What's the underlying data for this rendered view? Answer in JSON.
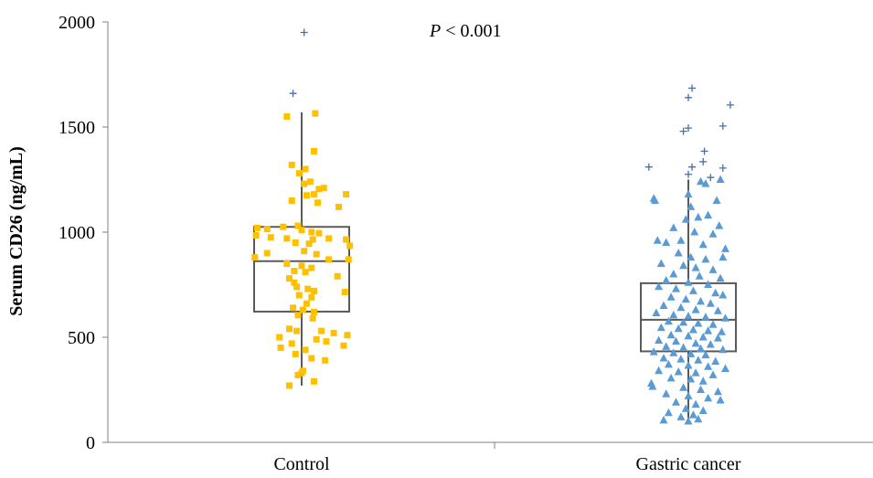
{
  "chart_data": {
    "type": "boxplot",
    "ylabel": "Serum CD26 (ng/mL)",
    "ylim": [
      0,
      2000
    ],
    "yticks": [
      "0",
      "500",
      "1000",
      "1500",
      "2000"
    ],
    "categories": [
      "Control",
      "Gastric cancer"
    ],
    "annotation": {
      "italic": "P",
      "rest": " < 0.001"
    },
    "grid": false,
    "series": [
      {
        "category": "Control",
        "marker": "square",
        "color": "#FFC000",
        "box": {
          "whisker_low": 270,
          "q1": 622,
          "median": 862,
          "q3": 1025,
          "whisker_high": 1570
        },
        "outliers": [
          1660,
          1950
        ],
        "points": [
          {
            "x": -0.12,
            "y": 1550
          },
          {
            "x": -0.08,
            "y": 1320
          },
          {
            "x": 0.03,
            "y": 1300
          },
          {
            "x": -0.02,
            "y": 1280
          },
          {
            "x": 0.1,
            "y": 1385
          },
          {
            "x": 0.11,
            "y": 1565
          },
          {
            "x": 0.07,
            "y": 1240
          },
          {
            "x": 0.02,
            "y": 1230
          },
          {
            "x": 0.14,
            "y": 1205
          },
          {
            "x": 0.18,
            "y": 1210
          },
          {
            "x": 0.1,
            "y": 1180
          },
          {
            "x": 0.36,
            "y": 1180
          },
          {
            "x": -0.08,
            "y": 1150
          },
          {
            "x": 0.04,
            "y": 1175
          },
          {
            "x": 0.13,
            "y": 1140
          },
          {
            "x": 0.3,
            "y": 1120
          },
          {
            "x": -0.36,
            "y": 1020
          },
          {
            "x": -0.28,
            "y": 1015
          },
          {
            "x": -0.15,
            "y": 1025
          },
          {
            "x": -0.03,
            "y": 1030
          },
          {
            "x": 0.0,
            "y": 1010
          },
          {
            "x": 0.08,
            "y": 1000
          },
          {
            "x": 0.14,
            "y": 995
          },
          {
            "x": -0.37,
            "y": 985
          },
          {
            "x": -0.25,
            "y": 975
          },
          {
            "x": -0.12,
            "y": 970
          },
          {
            "x": 0.09,
            "y": 965
          },
          {
            "x": 0.22,
            "y": 970
          },
          {
            "x": 0.36,
            "y": 965
          },
          {
            "x": -0.05,
            "y": 950
          },
          {
            "x": 0.06,
            "y": 945
          },
          {
            "x": 0.39,
            "y": 935
          },
          {
            "x": -0.28,
            "y": 900
          },
          {
            "x": 0.02,
            "y": 910
          },
          {
            "x": 0.12,
            "y": 895
          },
          {
            "x": -0.38,
            "y": 880
          },
          {
            "x": 0.22,
            "y": 870
          },
          {
            "x": 0.38,
            "y": 870
          },
          {
            "x": -0.12,
            "y": 850
          },
          {
            "x": 0.0,
            "y": 840
          },
          {
            "x": 0.08,
            "y": 830
          },
          {
            "x": -0.06,
            "y": 815
          },
          {
            "x": 0.03,
            "y": 810
          },
          {
            "x": 0.29,
            "y": 790
          },
          {
            "x": -0.1,
            "y": 780
          },
          {
            "x": -0.06,
            "y": 760
          },
          {
            "x": -0.04,
            "y": 740
          },
          {
            "x": 0.05,
            "y": 730
          },
          {
            "x": 0.1,
            "y": 720
          },
          {
            "x": 0.35,
            "y": 715
          },
          {
            "x": -0.02,
            "y": 700
          },
          {
            "x": 0.08,
            "y": 690
          },
          {
            "x": 0.04,
            "y": 660
          },
          {
            "x": -0.07,
            "y": 640
          },
          {
            "x": 0.01,
            "y": 630
          },
          {
            "x": 0.1,
            "y": 620
          },
          {
            "x": -0.03,
            "y": 605
          },
          {
            "x": 0.09,
            "y": 590
          },
          {
            "x": -0.1,
            "y": 540
          },
          {
            "x": -0.04,
            "y": 530
          },
          {
            "x": 0.16,
            "y": 530
          },
          {
            "x": 0.26,
            "y": 520
          },
          {
            "x": 0.37,
            "y": 510
          },
          {
            "x": -0.18,
            "y": 500
          },
          {
            "x": 0.12,
            "y": 490
          },
          {
            "x": 0.2,
            "y": 480
          },
          {
            "x": -0.08,
            "y": 470
          },
          {
            "x": 0.34,
            "y": 460
          },
          {
            "x": -0.17,
            "y": 450
          },
          {
            "x": 0.03,
            "y": 440
          },
          {
            "x": -0.05,
            "y": 420
          },
          {
            "x": 0.08,
            "y": 400
          },
          {
            "x": 0.19,
            "y": 390
          },
          {
            "x": 0.01,
            "y": 340
          },
          {
            "x": -0.03,
            "y": 320
          },
          {
            "x": 0.0,
            "y": 330
          },
          {
            "x": 0.1,
            "y": 290
          },
          {
            "x": -0.1,
            "y": 270
          }
        ]
      },
      {
        "category": "Gastric cancer",
        "marker": "triangle",
        "color": "#5B9BD5",
        "box": {
          "whisker_low": 105,
          "q1": 433,
          "median": 583,
          "q3": 757,
          "whisker_high": 1250
        },
        "outliers": [
          1685,
          1640,
          1605,
          1505,
          1495,
          1480,
          1385,
          1335,
          1310,
          1310,
          1305,
          1275,
          1260
        ],
        "points": [
          {
            "x": -0.28,
            "y": 1160
          },
          {
            "x": -0.27,
            "y": 1150
          },
          {
            "x": 0.1,
            "y": 1240
          },
          {
            "x": 0.14,
            "y": 1230
          },
          {
            "x": 0.23,
            "y": 1150
          },
          {
            "x": 0.26,
            "y": 1250
          },
          {
            "x": 0.0,
            "y": 1180
          },
          {
            "x": 0.02,
            "y": 1120
          },
          {
            "x": -0.02,
            "y": 1060
          },
          {
            "x": 0.08,
            "y": 1070
          },
          {
            "x": 0.16,
            "y": 1080
          },
          {
            "x": 0.25,
            "y": 1030
          },
          {
            "x": -0.12,
            "y": 1020
          },
          {
            "x": 0.05,
            "y": 1000
          },
          {
            "x": 0.2,
            "y": 990
          },
          {
            "x": -0.25,
            "y": 960
          },
          {
            "x": -0.18,
            "y": 950
          },
          {
            "x": -0.06,
            "y": 960
          },
          {
            "x": 0.12,
            "y": 940
          },
          {
            "x": 0.3,
            "y": 920
          },
          {
            "x": -0.08,
            "y": 900
          },
          {
            "x": 0.02,
            "y": 880
          },
          {
            "x": 0.14,
            "y": 870
          },
          {
            "x": 0.28,
            "y": 880
          },
          {
            "x": -0.22,
            "y": 850
          },
          {
            "x": -0.04,
            "y": 840
          },
          {
            "x": 0.06,
            "y": 830
          },
          {
            "x": 0.2,
            "y": 820
          },
          {
            "x": -0.12,
            "y": 800
          },
          {
            "x": 0.09,
            "y": 790
          },
          {
            "x": 0.26,
            "y": 780
          },
          {
            "x": -0.18,
            "y": 770
          },
          {
            "x": 0.0,
            "y": 760
          },
          {
            "x": 0.16,
            "y": 750
          },
          {
            "x": -0.24,
            "y": 740
          },
          {
            "x": -0.1,
            "y": 730
          },
          {
            "x": 0.04,
            "y": 720
          },
          {
            "x": 0.22,
            "y": 710
          },
          {
            "x": 0.28,
            "y": 700
          },
          {
            "x": -0.14,
            "y": 690
          },
          {
            "x": -0.02,
            "y": 680
          },
          {
            "x": 0.1,
            "y": 670
          },
          {
            "x": 0.18,
            "y": 660
          },
          {
            "x": -0.2,
            "y": 650
          },
          {
            "x": -0.06,
            "y": 640
          },
          {
            "x": 0.06,
            "y": 630
          },
          {
            "x": 0.24,
            "y": 625
          },
          {
            "x": -0.26,
            "y": 615
          },
          {
            "x": -0.12,
            "y": 605
          },
          {
            "x": 0.0,
            "y": 600
          },
          {
            "x": 0.14,
            "y": 595
          },
          {
            "x": 0.3,
            "y": 590
          },
          {
            "x": -0.16,
            "y": 575
          },
          {
            "x": -0.04,
            "y": 570
          },
          {
            "x": 0.08,
            "y": 565
          },
          {
            "x": 0.2,
            "y": 560
          },
          {
            "x": -0.22,
            "y": 545
          },
          {
            "x": -0.08,
            "y": 540
          },
          {
            "x": 0.04,
            "y": 535
          },
          {
            "x": 0.16,
            "y": 530
          },
          {
            "x": 0.27,
            "y": 525
          },
          {
            "x": -0.14,
            "y": 510
          },
          {
            "x": 0.0,
            "y": 505
          },
          {
            "x": 0.12,
            "y": 500
          },
          {
            "x": 0.24,
            "y": 495
          },
          {
            "x": -0.24,
            "y": 485
          },
          {
            "x": -0.1,
            "y": 480
          },
          {
            "x": 0.06,
            "y": 470
          },
          {
            "x": 0.18,
            "y": 465
          },
          {
            "x": -0.18,
            "y": 455
          },
          {
            "x": -0.04,
            "y": 450
          },
          {
            "x": 0.1,
            "y": 445
          },
          {
            "x": 0.28,
            "y": 440
          },
          {
            "x": -0.28,
            "y": 430
          },
          {
            "x": -0.12,
            "y": 425
          },
          {
            "x": 0.02,
            "y": 420
          },
          {
            "x": 0.14,
            "y": 415
          },
          {
            "x": -0.2,
            "y": 400
          },
          {
            "x": -0.06,
            "y": 395
          },
          {
            "x": 0.08,
            "y": 390
          },
          {
            "x": 0.22,
            "y": 385
          },
          {
            "x": -0.16,
            "y": 370
          },
          {
            "x": 0.0,
            "y": 365
          },
          {
            "x": 0.16,
            "y": 360
          },
          {
            "x": 0.3,
            "y": 350
          },
          {
            "x": -0.24,
            "y": 340
          },
          {
            "x": -0.08,
            "y": 335
          },
          {
            "x": 0.06,
            "y": 330
          },
          {
            "x": 0.2,
            "y": 320
          },
          {
            "x": -0.14,
            "y": 305
          },
          {
            "x": 0.02,
            "y": 300
          },
          {
            "x": 0.12,
            "y": 290
          },
          {
            "x": -0.3,
            "y": 280
          },
          {
            "x": -0.29,
            "y": 265
          },
          {
            "x": -0.04,
            "y": 260
          },
          {
            "x": 0.1,
            "y": 250
          },
          {
            "x": 0.24,
            "y": 240
          },
          {
            "x": -0.18,
            "y": 230
          },
          {
            "x": 0.0,
            "y": 220
          },
          {
            "x": 0.16,
            "y": 210
          },
          {
            "x": 0.26,
            "y": 200
          },
          {
            "x": -0.1,
            "y": 190
          },
          {
            "x": 0.06,
            "y": 180
          },
          {
            "x": -0.02,
            "y": 160
          },
          {
            "x": 0.12,
            "y": 150
          },
          {
            "x": -0.16,
            "y": 140
          },
          {
            "x": 0.04,
            "y": 130
          },
          {
            "x": -0.06,
            "y": 120
          },
          {
            "x": 0.08,
            "y": 110
          },
          {
            "x": -0.2,
            "y": 105
          },
          {
            "x": 0.0,
            "y": 100
          }
        ]
      }
    ]
  }
}
